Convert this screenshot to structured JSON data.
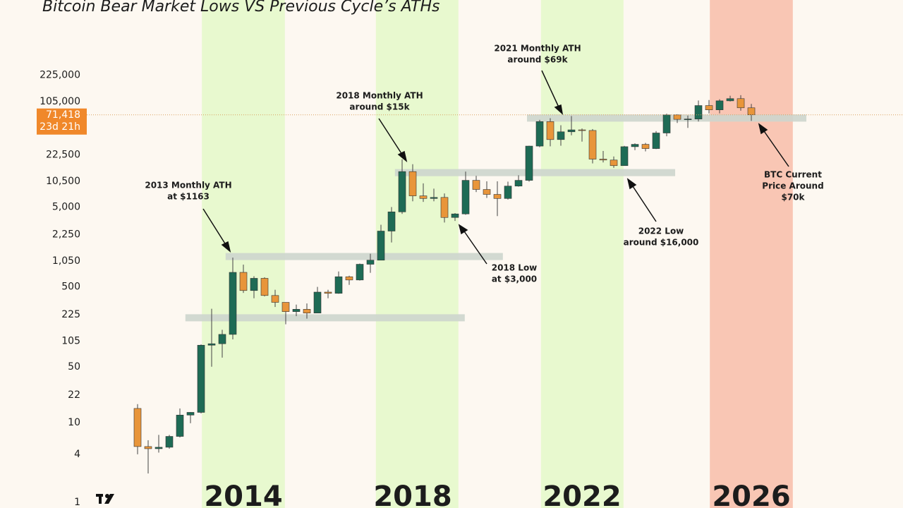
{
  "chart_data": {
    "type": "candlestick",
    "title": "Bitcoin Bear Market Lows VS Previous Cycle’s ATHs",
    "log_scale": true,
    "up_color": "#1e6b55",
    "down_color": "#e8953a",
    "xlim": [
      2008.25,
      2029.583
    ],
    "ylim": [
      1,
      2000000
    ],
    "xticks": [
      2014,
      2018,
      2022,
      2026
    ],
    "yticks": [
      {
        "value": 225000,
        "label": "225,000"
      },
      {
        "value": 105000,
        "label": "105,000"
      },
      {
        "value": 22500,
        "label": "22,500"
      },
      {
        "value": 10500,
        "label": "10,500"
      },
      {
        "value": 5000,
        "label": "5,000"
      },
      {
        "value": 2250,
        "label": "2,250"
      },
      {
        "value": 1050,
        "label": "1,050"
      },
      500,
      225,
      105,
      50,
      22,
      10,
      4,
      1
    ],
    "bands": [
      {
        "start": 2013.02,
        "end": 2014.98,
        "color": "#e8f9cf"
      },
      {
        "start": 2017.13,
        "end": 2019.08,
        "color": "#e8f9cf"
      },
      {
        "start": 2021.03,
        "end": 2022.98,
        "color": "#e8f9cf"
      },
      {
        "start": 2025.02,
        "end": 2026.98,
        "color": "#f9c6b4"
      }
    ],
    "levels": [
      {
        "value": 1200,
        "start": 2013.58,
        "end": 2020.13
      },
      {
        "value": 205,
        "start": 2012.63,
        "end": 2019.23
      },
      {
        "value": 13500,
        "start": 2017.58,
        "end": 2024.2
      },
      {
        "value": 65000,
        "start": 2020.7,
        "end": 2027.3
      }
    ],
    "current_price": {
      "value": 71418,
      "label": "71,418"
    },
    "countdown": "23d 21h",
    "annotations": [
      [
        "2013 Monthly ATH",
        "at $1163"
      ],
      [
        "2018 Monthly ATH",
        "around $15k"
      ],
      [
        "2021  Monthly ATH",
        "around $69k"
      ],
      [
        "2018 Low",
        "at $3,000"
      ],
      [
        "2022 Low",
        "around $16,000"
      ],
      [
        "BTC Current",
        "Price Around",
        "$70k"
      ]
    ],
    "candles": {
      "x": [
        2011.5,
        2011.75,
        2012.0,
        2012.25,
        2012.5,
        2012.75,
        2013.0,
        2013.25,
        2013.5,
        2013.75,
        2014.0,
        2014.25,
        2014.5,
        2014.75,
        2015.0,
        2015.25,
        2015.5,
        2015.75,
        2016.0,
        2016.25,
        2016.5,
        2016.75,
        2017.0,
        2017.25,
        2017.5,
        2017.75,
        2018.0,
        2018.25,
        2018.5,
        2018.75,
        2019.0,
        2019.25,
        2019.5,
        2019.75,
        2020.0,
        2020.25,
        2020.5,
        2020.75,
        2021.0,
        2021.25,
        2021.5,
        2021.75,
        2022.0,
        2022.25,
        2022.5,
        2022.75,
        2023.0,
        2023.25,
        2023.5,
        2023.75,
        2024.0,
        2024.25,
        2024.5,
        2024.75,
        2025.0,
        2025.25,
        2025.5,
        2025.75,
        2026.0
      ],
      "open": [
        15,
        5,
        4.7,
        4.9,
        6.7,
        12.4,
        13.4,
        93,
        97,
        127,
        760,
        450,
        640,
        390,
        320,
        245,
        262,
        235,
        430,
        415,
        670,
        610,
        960,
        1080,
        2500,
        4350,
        13900,
        6900,
        6400,
        6600,
        3700,
        4100,
        10800,
        8300,
        7200,
        6400,
        9150,
        10800,
        29000,
        58800,
        35000,
        43800,
        46300,
        45500,
        19900,
        19400,
        16500,
        28500,
        30500,
        27000,
        42300,
        71300,
        62700,
        63300,
        93400,
        82500,
        107000,
        114000,
        87500
      ],
      "high": [
        17,
        6,
        7,
        7,
        15,
        13.5,
        95,
        266,
        145,
        1163,
        950,
        680,
        660,
        460,
        320,
        300,
        310,
        500,
        460,
        780,
        690,
        980,
        1300,
        3000,
        5000,
        19800,
        17200,
        9900,
        8500,
        7400,
        4200,
        13900,
        12300,
        10500,
        10500,
        10400,
        12500,
        29300,
        61800,
        64800,
        52900,
        69000,
        48200,
        47400,
        25200,
        21500,
        29200,
        31400,
        31800,
        44700,
        73800,
        72700,
        70000,
        108000,
        109500,
        112000,
        124000,
        126000,
        97900
      ],
      "low": [
        4,
        2.3,
        4.2,
        4.7,
        6.5,
        9.8,
        13,
        50,
        65,
        110,
        420,
        360,
        380,
        280,
        170,
        215,
        200,
        235,
        360,
        410,
        530,
        600,
        750,
        1080,
        1800,
        4100,
        5900,
        5800,
        5900,
        3200,
        3350,
        4000,
        7700,
        6500,
        3850,
        6200,
        9000,
        10400,
        28100,
        28800,
        29300,
        39600,
        33000,
        17600,
        18100,
        15500,
        16500,
        25800,
        24900,
        26600,
        38500,
        56500,
        49000,
        58900,
        74400,
        74500,
        105000,
        80500,
        60000
      ],
      "close": [
        5,
        4.7,
        4.9,
        6.7,
        12.4,
        13.4,
        93,
        97,
        127,
        760,
        450,
        640,
        390,
        320,
        245,
        262,
        235,
        430,
        415,
        670,
        610,
        960,
        1080,
        2500,
        4350,
        13900,
        6900,
        6400,
        6600,
        3700,
        4100,
        10800,
        8300,
        7200,
        6400,
        9150,
        10800,
        29000,
        58800,
        35000,
        43800,
        46300,
        45500,
        19900,
        19400,
        16500,
        28500,
        30500,
        27000,
        42300,
        71300,
        62700,
        63300,
        93400,
        82500,
        107000,
        114000,
        87500,
        71418
      ]
    }
  }
}
